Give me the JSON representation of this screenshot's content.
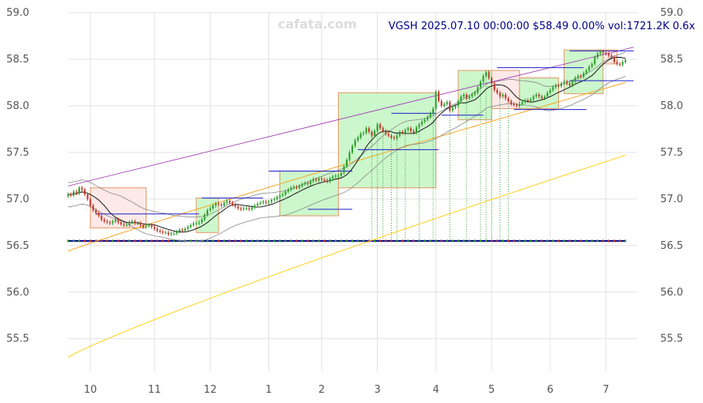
{
  "watermark": "cafata.com",
  "header": "VGSH 2025.07.10 00:00:00 $58.49 0.00% vol:1721.2K 0.6x",
  "colors": {
    "up": "#2e9e2e",
    "down": "#c0392b",
    "grid": "#e2e2e2",
    "box_up_fill": "#ccf7cc",
    "box_down_fill": "#fde9e7",
    "box_stroke": "#e59866",
    "channel": "#9b2fae",
    "bands": "#888888",
    "ma_fast": "#000000",
    "ma_mid": "#f5a623",
    "ma_slow": "#ffd21e",
    "level": "#1f1fcc",
    "vol_line": "#00008b",
    "vol_drop": "#2e9e2e"
  },
  "chart_data": {
    "type": "candlestick",
    "symbol": "VGSH",
    "ylim": [
      55.15,
      59.0
    ],
    "y_ticks": [
      55.5,
      56.0,
      56.5,
      57.0,
      57.5,
      58.0,
      58.5,
      59.0
    ],
    "x_ticks": [
      {
        "label": "10",
        "i": 8
      },
      {
        "label": "11",
        "i": 31
      },
      {
        "label": "12",
        "i": 51
      },
      {
        "label": "1",
        "i": 72
      },
      {
        "label": "2",
        "i": 91
      },
      {
        "label": "3",
        "i": 111
      },
      {
        "label": "4",
        "i": 132
      },
      {
        "label": "5",
        "i": 152
      },
      {
        "label": "6",
        "i": 173
      },
      {
        "label": "7",
        "i": 193
      }
    ],
    "close": [
      57.05,
      57.04,
      57.08,
      57.06,
      57.12,
      57.1,
      57.05,
      57.0,
      56.93,
      56.88,
      56.85,
      56.82,
      56.78,
      56.76,
      56.75,
      56.74,
      56.76,
      56.78,
      56.75,
      56.73,
      56.72,
      56.72,
      56.75,
      56.76,
      56.74,
      56.74,
      56.72,
      56.7,
      56.71,
      56.72,
      56.7,
      56.68,
      56.66,
      56.65,
      56.64,
      56.64,
      56.62,
      56.63,
      56.63,
      56.65,
      56.67,
      56.66,
      56.68,
      56.7,
      56.72,
      56.74,
      56.74,
      56.75,
      56.78,
      56.83,
      56.88,
      56.9,
      56.93,
      56.95,
      56.94,
      56.93,
      56.96,
      56.98,
      56.96,
      56.94,
      56.92,
      56.9,
      56.89,
      56.9,
      56.9,
      56.89,
      56.91,
      56.93,
      56.95,
      56.96,
      56.97,
      56.96,
      56.97,
      56.99,
      57.0,
      57.02,
      57.04,
      57.05,
      57.08,
      57.1,
      57.12,
      57.13,
      57.12,
      57.14,
      57.16,
      57.17,
      57.16,
      57.19,
      57.21,
      57.2,
      57.22,
      57.21,
      57.2,
      57.19,
      57.22,
      57.24,
      57.25,
      57.25,
      57.28,
      57.35,
      57.42,
      57.5,
      57.57,
      57.63,
      57.66,
      57.7,
      57.71,
      57.76,
      57.72,
      57.68,
      57.73,
      57.8,
      57.76,
      57.73,
      57.7,
      57.68,
      57.66,
      57.65,
      57.68,
      57.72,
      57.71,
      57.74,
      57.76,
      57.73,
      57.71,
      57.77,
      57.8,
      57.83,
      57.85,
      57.88,
      57.92,
      57.97,
      58.15,
      58.05,
      58.0,
      58.02,
      58.04,
      57.95,
      57.98,
      58.0,
      58.05,
      58.1,
      58.12,
      58.08,
      58.1,
      58.12,
      58.14,
      58.2,
      58.26,
      58.32,
      58.36,
      58.3,
      58.24,
      58.17,
      58.14,
      58.1,
      58.12,
      58.08,
      58.05,
      58.02,
      58.01,
      58.0,
      58.02,
      58.04,
      58.06,
      58.05,
      58.07,
      58.1,
      58.12,
      58.1,
      58.08,
      58.1,
      58.14,
      58.17,
      58.2,
      58.22,
      58.21,
      58.24,
      58.26,
      58.24,
      58.22,
      58.26,
      58.3,
      58.32,
      58.31,
      58.35,
      58.38,
      58.42,
      58.45,
      58.52,
      58.56,
      58.58,
      58.57,
      58.56,
      58.54,
      58.52,
      58.47,
      58.45,
      58.44,
      58.47,
      58.49
    ],
    "channel": [
      {
        "i": 0,
        "y": 57.14
      },
      {
        "i": 203,
        "y": 58.63
      }
    ],
    "boxes": [
      {
        "i0": 8,
        "i1": 28,
        "y0": 56.69,
        "y1": 57.12,
        "dir": "down"
      },
      {
        "i0": 46,
        "i1": 54,
        "y0": 56.64,
        "y1": 57.01,
        "dir": "up"
      },
      {
        "i0": 76,
        "i1": 97,
        "y0": 56.82,
        "y1": 57.3,
        "dir": "up"
      },
      {
        "i0": 97,
        "i1": 132,
        "y0": 57.12,
        "y1": 58.14,
        "dir": "up"
      },
      {
        "i0": 140,
        "i1": 152,
        "y0": 57.85,
        "y1": 58.38,
        "dir": "up"
      },
      {
        "i0": 152,
        "i1": 162,
        "y0": 57.97,
        "y1": 58.38,
        "dir": "down"
      },
      {
        "i0": 162,
        "i1": 176,
        "y0": 57.97,
        "y1": 58.3,
        "dir": "up"
      },
      {
        "i0": 178,
        "i1": 192,
        "y0": 58.13,
        "y1": 58.6,
        "dir": "up"
      },
      {
        "i0": 192,
        "i1": 197,
        "y0": 58.45,
        "y1": 58.6,
        "dir": "down"
      }
    ],
    "levels": [
      {
        "i0": 10,
        "i1": 47,
        "y": 56.84
      },
      {
        "i0": 48,
        "i1": 70,
        "y": 57.01
      },
      {
        "i0": 72,
        "i1": 102,
        "y": 57.3
      },
      {
        "i0": 86,
        "i1": 102,
        "y": 56.89
      },
      {
        "i0": 104,
        "i1": 133,
        "y": 57.53
      },
      {
        "i0": 116,
        "i1": 132,
        "y": 57.92
      },
      {
        "i0": 134,
        "i1": 149,
        "y": 57.9
      },
      {
        "i0": 154,
        "i1": 185,
        "y": 58.41
      },
      {
        "i0": 160,
        "i1": 186,
        "y": 57.96
      },
      {
        "i0": 180,
        "i1": 203,
        "y": 58.59
      },
      {
        "i0": 180,
        "i1": 203,
        "y": 58.27
      }
    ],
    "volume_drops": [
      109,
      111,
      113,
      116,
      118,
      121,
      126,
      131,
      137,
      143,
      148,
      150,
      152,
      155,
      158
    ]
  }
}
